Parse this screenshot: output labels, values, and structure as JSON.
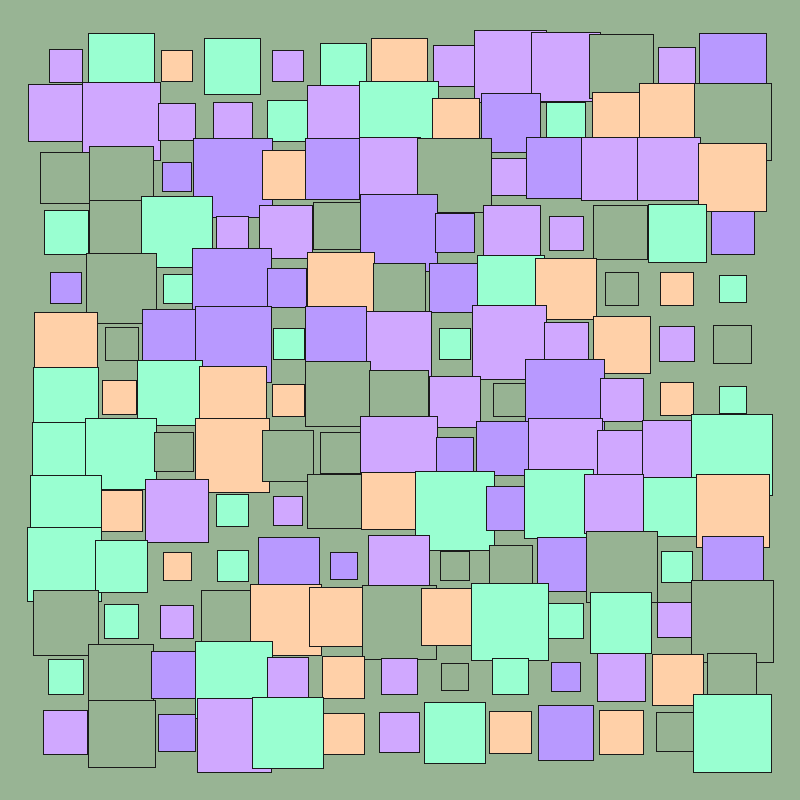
{
  "artwork": {
    "background": "#98b494",
    "palette": {
      "M": "#99ffd1",
      "P": "#ffd0a8",
      "L": "#d0a8ff",
      "V": "#b899ff",
      "G": "#97b393"
    },
    "palette_names": {
      "M": "mint",
      "P": "peach",
      "L": "lavender",
      "V": "violet",
      "G": "sage"
    }
  }
}
